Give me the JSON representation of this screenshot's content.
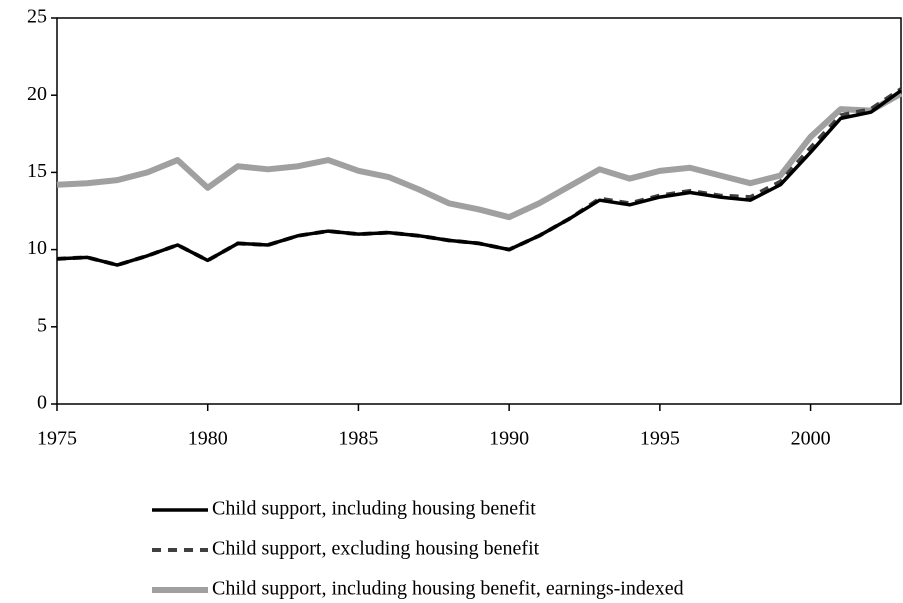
{
  "chart_data": {
    "type": "line",
    "x": [
      1975,
      1976,
      1977,
      1978,
      1979,
      1980,
      1981,
      1982,
      1983,
      1984,
      1985,
      1986,
      1987,
      1988,
      1989,
      1990,
      1991,
      1992,
      1993,
      1994,
      1995,
      1996,
      1997,
      1998,
      1999,
      2000,
      2001,
      2002,
      2003
    ],
    "series": [
      {
        "name": "Child support, including housing benefit",
        "color": "#000000",
        "style": "solid",
        "values": [
          9.4,
          9.5,
          9.0,
          9.6,
          10.3,
          9.3,
          10.4,
          10.3,
          10.9,
          11.2,
          11.0,
          11.1,
          10.9,
          10.6,
          10.4,
          10.0,
          10.9,
          12.0,
          13.2,
          12.9,
          13.4,
          13.7,
          13.4,
          13.2,
          14.2,
          16.3,
          18.5,
          18.9,
          20.3
        ]
      },
      {
        "name": "Child support, excluding housing benefit",
        "color": "#404040",
        "style": "dashed",
        "values": [
          9.4,
          9.5,
          9.0,
          9.6,
          10.3,
          9.3,
          10.4,
          10.3,
          10.9,
          11.2,
          11.0,
          11.1,
          10.9,
          10.6,
          10.4,
          10.0,
          10.9,
          12.0,
          13.3,
          13.0,
          13.5,
          13.8,
          13.5,
          13.4,
          14.4,
          16.6,
          18.7,
          19.1,
          20.4
        ]
      },
      {
        "name": "Child support, including housing benefit, earnings-indexed",
        "color": "#a0a0a0",
        "style": "solid",
        "values": [
          14.2,
          14.3,
          14.5,
          15.0,
          15.8,
          14.0,
          15.4,
          15.2,
          15.4,
          15.8,
          15.1,
          14.7,
          13.9,
          13.0,
          12.6,
          12.1,
          13.0,
          14.1,
          15.2,
          14.6,
          15.1,
          15.3,
          14.8,
          14.3,
          14.8,
          17.3,
          19.1,
          19.0,
          20.1
        ]
      }
    ],
    "xlim": [
      1975,
      2003
    ],
    "xticks": [
      1975,
      1980,
      1985,
      1990,
      1995,
      2000
    ],
    "ylim": [
      0,
      25
    ],
    "yticks": [
      0,
      5,
      10,
      15,
      20,
      25
    ]
  }
}
